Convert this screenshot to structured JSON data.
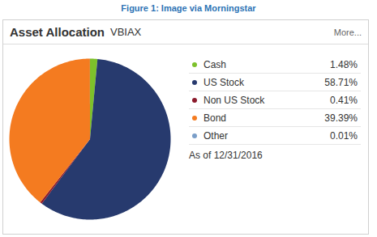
{
  "chart_data": {
    "type": "pie",
    "caption": "Figure 1: Image via Morningstar",
    "title": "Asset Allocation",
    "subtitle": "VBIAX",
    "annotations": [
      "More...",
      "As of 12/31/2016"
    ],
    "categories": [
      "Cash",
      "US Stock",
      "Non US Stock",
      "Bond",
      "Other"
    ],
    "values": [
      1.48,
      58.71,
      0.41,
      39.39,
      0.01
    ],
    "value_labels": [
      "1.48%",
      "58.71%",
      "0.41%",
      "39.39%",
      "0.01%"
    ],
    "colors": [
      "#7dc12b",
      "#273a6e",
      "#8b1a2b",
      "#f47b20",
      "#7a9ec8"
    ],
    "legend": "right"
  }
}
